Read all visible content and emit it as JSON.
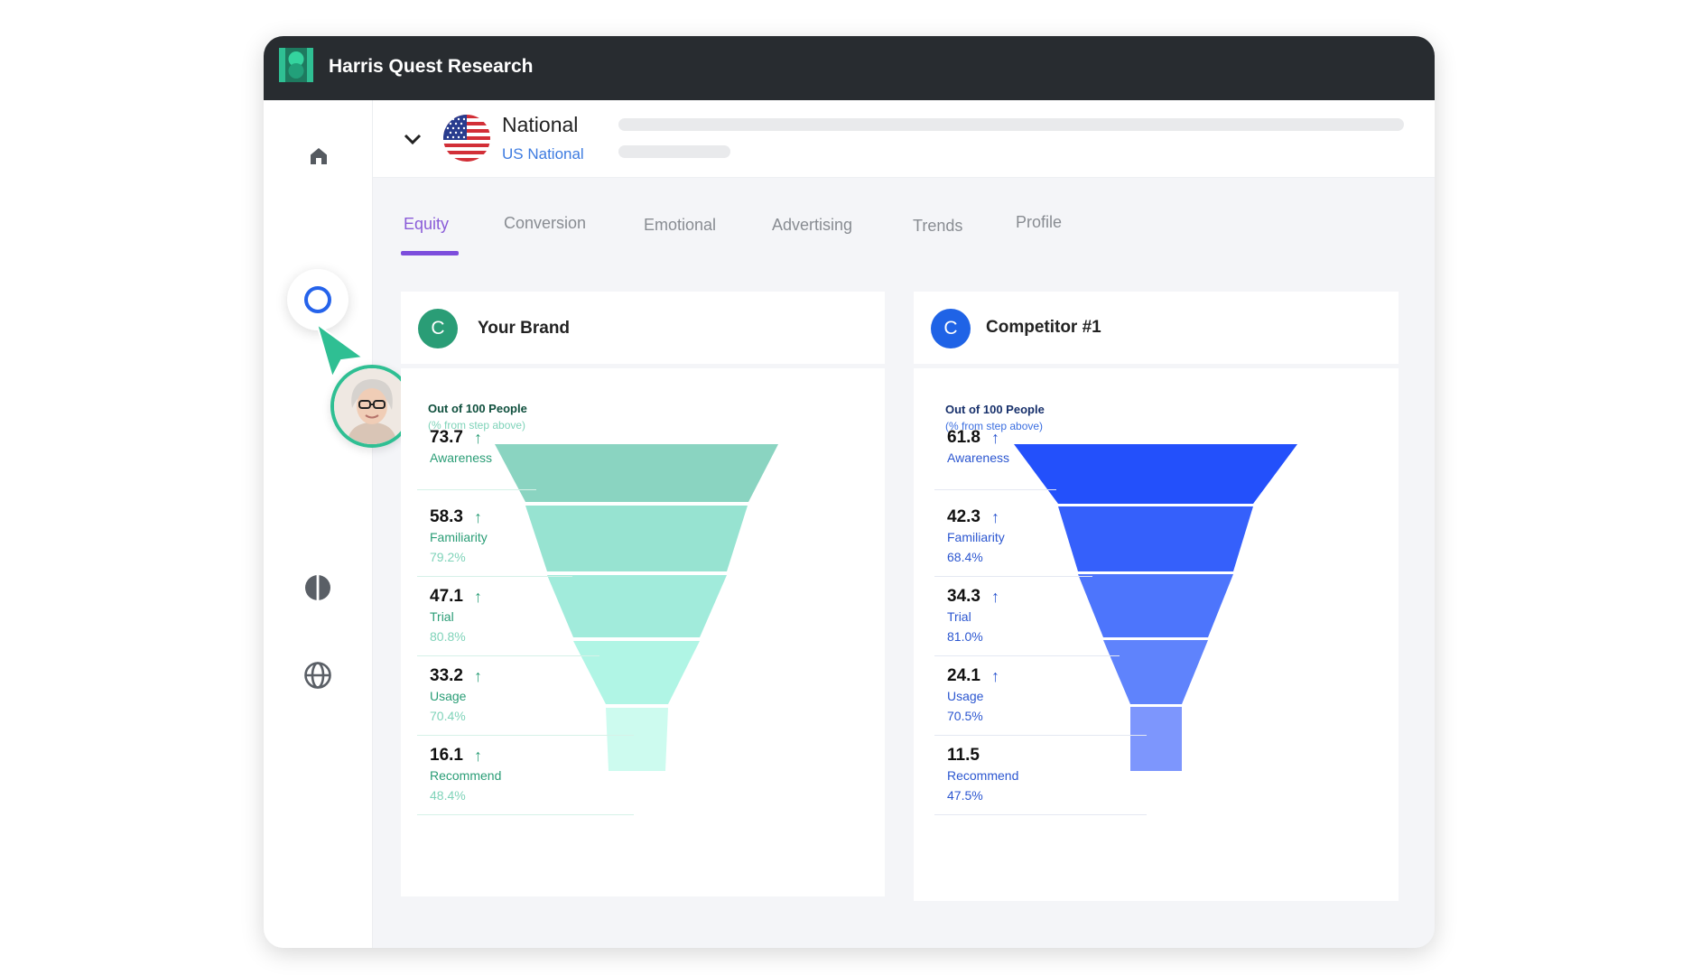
{
  "app": {
    "title": "Harris Quest Research"
  },
  "sidebar": {
    "items": [
      {
        "icon": "home-icon"
      },
      {
        "icon": "circle-icon",
        "active": true
      },
      {
        "icon": "contrast-icon"
      },
      {
        "icon": "globe-icon"
      }
    ]
  },
  "header": {
    "region_title": "National",
    "region_subtitle": "US National",
    "flag": "us-flag-icon"
  },
  "tabs": [
    {
      "label": "Equity",
      "active": true
    },
    {
      "label": "Conversion"
    },
    {
      "label": "Emotional"
    },
    {
      "label": "Advertising"
    },
    {
      "label": "Trends"
    },
    {
      "label": "Profile"
    }
  ],
  "cards": [
    {
      "letter": "C",
      "name": "Your Brand",
      "accent": "#2a9d76",
      "out_of_title": "Out of 100 People",
      "out_of_sub": "(% from step above)",
      "funnel_colors": [
        "#8ad4c1",
        "#97e3d1",
        "#a1ebdb",
        "#b0f5e5",
        "#cdfbef"
      ],
      "steps": [
        {
          "value": "73.7",
          "trend": "↑",
          "label": "Awareness",
          "pct": ""
        },
        {
          "value": "58.3",
          "trend": "↑",
          "label": "Familiarity",
          "pct": "79.2%"
        },
        {
          "value": "47.1",
          "trend": "↑",
          "label": "Trial",
          "pct": "80.8%"
        },
        {
          "value": "33.2",
          "trend": "↑",
          "label": "Usage",
          "pct": "70.4%"
        },
        {
          "value": "16.1",
          "trend": "↑",
          "label": "Recommend",
          "pct": "48.4%"
        }
      ]
    },
    {
      "letter": "C",
      "name": "Competitor #1",
      "accent": "#1f63e6",
      "out_of_title": "Out of 100 People",
      "out_of_sub": "(% from step above)",
      "funnel_colors": [
        "#2350fb",
        "#3560fb",
        "#4d75fc",
        "#5f83fc",
        "#7d96fd"
      ],
      "steps": [
        {
          "value": "61.8",
          "trend": "↑",
          "label": "Awareness",
          "pct": ""
        },
        {
          "value": "42.3",
          "trend": "↑",
          "label": "Familiarity",
          "pct": "68.4%"
        },
        {
          "value": "34.3",
          "trend": "↑",
          "label": "Trial",
          "pct": "81.0%"
        },
        {
          "value": "24.1",
          "trend": "↑",
          "label": "Usage",
          "pct": "70.5%"
        },
        {
          "value": "11.5",
          "trend": "",
          "label": "Recommend",
          "pct": "47.5%"
        }
      ]
    }
  ]
}
